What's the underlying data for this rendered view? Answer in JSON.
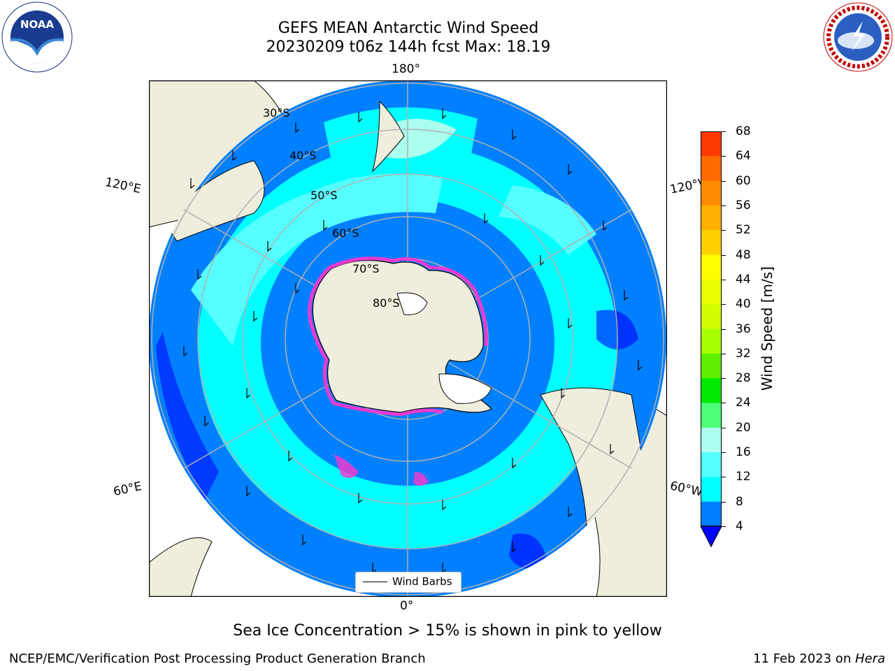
{
  "title": {
    "line1": "GEFS MEAN Antarctic Wind Speed",
    "line2": "20230209 t06z 144h fcst   Max: 18.19"
  },
  "map": {
    "longitude_labels": {
      "top": "180°",
      "bottom": "0°",
      "upper_left": "120°E",
      "lower_left": "60°E",
      "upper_right": "120°W",
      "lower_right": "60°W"
    },
    "latitude_labels": [
      "30°S",
      "40°S",
      "50°S",
      "60°S",
      "70°S",
      "80°S"
    ],
    "legend_label": "Wind Barbs"
  },
  "colorbar": {
    "label": "Wind Speed [m/s]",
    "ticks": [
      "68",
      "64",
      "60",
      "56",
      "52",
      "48",
      "44",
      "40",
      "36",
      "32",
      "28",
      "24",
      "20",
      "16",
      "12",
      "8",
      "4"
    ],
    "colors": [
      "#ff0000",
      "#ff3a00",
      "#ff6a00",
      "#ff8c00",
      "#ffb000",
      "#ffd000",
      "#ffff00",
      "#e8ff00",
      "#d0ff00",
      "#a8ff00",
      "#60ee00",
      "#00e800",
      "#4cff78",
      "#aaffee",
      "#55ffff",
      "#00ffff",
      "#0080ff"
    ],
    "extend_color": "#0000ff"
  },
  "caption": "Sea Ice Concentration > 15% is shown in pink to yellow",
  "footer": {
    "left": "NCEP/EMC/Verification Post Processing Product Generation Branch",
    "right_date": "11 Feb 2023 on ",
    "right_host": "Hera"
  },
  "colors": {
    "ocean_base": "#0080ff",
    "wind_mid": "#00ffff",
    "land": "#efeedc",
    "sea_ice": "#ff33cc"
  }
}
